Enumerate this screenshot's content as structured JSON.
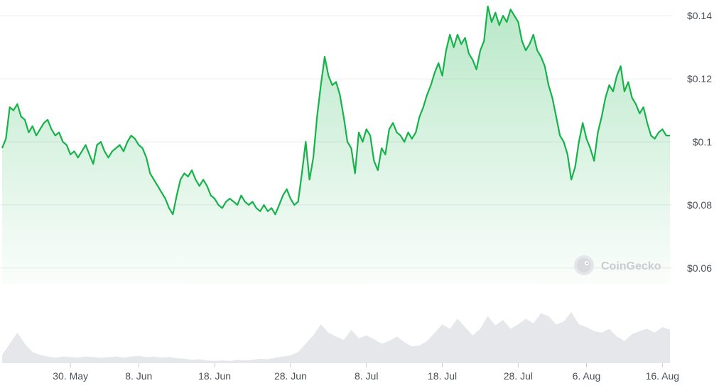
{
  "chart_data": {
    "type": "area",
    "title": "",
    "xlabel": "",
    "ylabel": "",
    "y_unit_prefix": "$",
    "ylim": [
      0.055,
      0.145
    ],
    "y_ticks": [
      "$0.14",
      "$0.12",
      "$0.1",
      "$0.08",
      "$0.06"
    ],
    "y_tick_values": [
      0.14,
      0.12,
      0.1,
      0.08,
      0.06
    ],
    "x_ticks": [
      "30. May",
      "8. Jun",
      "18. Jun",
      "28. Jun",
      "8. Jul",
      "18. Jul",
      "28. Jul",
      "6. Aug",
      "16. Aug"
    ],
    "x_tick_days": [
      9,
      18,
      28,
      38,
      48,
      58,
      68,
      77,
      87
    ],
    "x_range_days": [
      0,
      88
    ],
    "grid": "horizontal",
    "line_color": "#16b24a",
    "fill_color": "#16b24a",
    "volume_color": "#e5e7ea",
    "price_series": [
      [
        0.0,
        0.098
      ],
      [
        0.5,
        0.101
      ],
      [
        1.0,
        0.111
      ],
      [
        1.5,
        0.11
      ],
      [
        2.0,
        0.112
      ],
      [
        2.5,
        0.108
      ],
      [
        3.0,
        0.107
      ],
      [
        3.5,
        0.103
      ],
      [
        4.0,
        0.105
      ],
      [
        4.5,
        0.102
      ],
      [
        5.0,
        0.104
      ],
      [
        5.5,
        0.106
      ],
      [
        6.0,
        0.107
      ],
      [
        6.5,
        0.104
      ],
      [
        7.0,
        0.102
      ],
      [
        7.5,
        0.103
      ],
      [
        8.0,
        0.1
      ],
      [
        8.5,
        0.099
      ],
      [
        9.0,
        0.096
      ],
      [
        9.5,
        0.097
      ],
      [
        10.0,
        0.095
      ],
      [
        10.5,
        0.097
      ],
      [
        11.0,
        0.099
      ],
      [
        11.5,
        0.096
      ],
      [
        12.0,
        0.093
      ],
      [
        12.5,
        0.099
      ],
      [
        13.0,
        0.1
      ],
      [
        13.5,
        0.097
      ],
      [
        14.0,
        0.095
      ],
      [
        14.5,
        0.097
      ],
      [
        15.0,
        0.098
      ],
      [
        15.5,
        0.099
      ],
      [
        16.0,
        0.097
      ],
      [
        16.5,
        0.1
      ],
      [
        17.0,
        0.102
      ],
      [
        17.5,
        0.101
      ],
      [
        18.0,
        0.099
      ],
      [
        18.5,
        0.098
      ],
      [
        19.0,
        0.095
      ],
      [
        19.5,
        0.09
      ],
      [
        20.0,
        0.088
      ],
      [
        20.5,
        0.086
      ],
      [
        21.0,
        0.084
      ],
      [
        21.5,
        0.082
      ],
      [
        22.0,
        0.079
      ],
      [
        22.5,
        0.077
      ],
      [
        23.0,
        0.083
      ],
      [
        23.5,
        0.088
      ],
      [
        24.0,
        0.09
      ],
      [
        24.5,
        0.089
      ],
      [
        25.0,
        0.091
      ],
      [
        25.5,
        0.088
      ],
      [
        26.0,
        0.086
      ],
      [
        26.5,
        0.088
      ],
      [
        27.0,
        0.086
      ],
      [
        27.5,
        0.083
      ],
      [
        28.0,
        0.082
      ],
      [
        28.5,
        0.08
      ],
      [
        29.0,
        0.079
      ],
      [
        29.5,
        0.081
      ],
      [
        30.0,
        0.082
      ],
      [
        30.5,
        0.081
      ],
      [
        31.0,
        0.08
      ],
      [
        31.5,
        0.083
      ],
      [
        32.0,
        0.081
      ],
      [
        32.5,
        0.08
      ],
      [
        33.0,
        0.081
      ],
      [
        33.5,
        0.079
      ],
      [
        34.0,
        0.078
      ],
      [
        34.5,
        0.08
      ],
      [
        35.0,
        0.078
      ],
      [
        35.5,
        0.079
      ],
      [
        36.0,
        0.077
      ],
      [
        36.5,
        0.08
      ],
      [
        37.0,
        0.083
      ],
      [
        37.5,
        0.085
      ],
      [
        38.0,
        0.082
      ],
      [
        38.5,
        0.08
      ],
      [
        39.0,
        0.081
      ],
      [
        39.5,
        0.09
      ],
      [
        40.0,
        0.1
      ],
      [
        40.5,
        0.088
      ],
      [
        41.0,
        0.095
      ],
      [
        41.5,
        0.108
      ],
      [
        42.0,
        0.118
      ],
      [
        42.5,
        0.127
      ],
      [
        43.0,
        0.121
      ],
      [
        43.5,
        0.118
      ],
      [
        44.0,
        0.119
      ],
      [
        44.5,
        0.115
      ],
      [
        45.0,
        0.108
      ],
      [
        45.5,
        0.1
      ],
      [
        46.0,
        0.098
      ],
      [
        46.5,
        0.09
      ],
      [
        47.0,
        0.103
      ],
      [
        47.5,
        0.1
      ],
      [
        48.0,
        0.104
      ],
      [
        48.5,
        0.102
      ],
      [
        49.0,
        0.094
      ],
      [
        49.5,
        0.091
      ],
      [
        50.0,
        0.098
      ],
      [
        50.5,
        0.096
      ],
      [
        51.0,
        0.104
      ],
      [
        51.5,
        0.106
      ],
      [
        52.0,
        0.103
      ],
      [
        52.5,
        0.102
      ],
      [
        53.0,
        0.1
      ],
      [
        53.5,
        0.103
      ],
      [
        54.0,
        0.101
      ],
      [
        54.5,
        0.103
      ],
      [
        55.0,
        0.108
      ],
      [
        55.5,
        0.111
      ],
      [
        56.0,
        0.115
      ],
      [
        56.5,
        0.118
      ],
      [
        57.0,
        0.122
      ],
      [
        57.5,
        0.125
      ],
      [
        58.0,
        0.121
      ],
      [
        58.5,
        0.129
      ],
      [
        59.0,
        0.134
      ],
      [
        59.5,
        0.13
      ],
      [
        60.0,
        0.134
      ],
      [
        60.5,
        0.131
      ],
      [
        61.0,
        0.133
      ],
      [
        61.5,
        0.128
      ],
      [
        62.0,
        0.126
      ],
      [
        62.5,
        0.123
      ],
      [
        63.0,
        0.129
      ],
      [
        63.5,
        0.132
      ],
      [
        64.0,
        0.143
      ],
      [
        64.5,
        0.138
      ],
      [
        65.0,
        0.141
      ],
      [
        65.5,
        0.137
      ],
      [
        66.0,
        0.14
      ],
      [
        66.5,
        0.138
      ],
      [
        67.0,
        0.142
      ],
      [
        67.5,
        0.14
      ],
      [
        68.0,
        0.138
      ],
      [
        68.5,
        0.132
      ],
      [
        69.0,
        0.129
      ],
      [
        69.5,
        0.131
      ],
      [
        70.0,
        0.134
      ],
      [
        70.5,
        0.129
      ],
      [
        71.0,
        0.127
      ],
      [
        71.5,
        0.124
      ],
      [
        72.0,
        0.118
      ],
      [
        72.5,
        0.114
      ],
      [
        73.0,
        0.108
      ],
      [
        73.5,
        0.102
      ],
      [
        74.0,
        0.1
      ],
      [
        74.5,
        0.096
      ],
      [
        75.0,
        0.088
      ],
      [
        75.5,
        0.092
      ],
      [
        76.0,
        0.1
      ],
      [
        76.5,
        0.106
      ],
      [
        77.0,
        0.101
      ],
      [
        77.5,
        0.098
      ],
      [
        78.0,
        0.094
      ],
      [
        78.5,
        0.103
      ],
      [
        79.0,
        0.108
      ],
      [
        79.5,
        0.114
      ],
      [
        80.0,
        0.118
      ],
      [
        80.5,
        0.116
      ],
      [
        81.0,
        0.121
      ],
      [
        81.5,
        0.124
      ],
      [
        82.0,
        0.116
      ],
      [
        82.5,
        0.119
      ],
      [
        83.0,
        0.114
      ],
      [
        83.5,
        0.112
      ],
      [
        84.0,
        0.109
      ],
      [
        84.5,
        0.111
      ],
      [
        85.0,
        0.106
      ],
      [
        85.5,
        0.102
      ],
      [
        86.0,
        0.101
      ],
      [
        86.5,
        0.103
      ],
      [
        87.0,
        0.104
      ],
      [
        87.5,
        0.102
      ],
      [
        88.0,
        0.102
      ]
    ],
    "volume_series": [
      [
        0,
        0.15
      ],
      [
        1,
        0.35
      ],
      [
        2,
        0.55
      ],
      [
        3,
        0.35
      ],
      [
        4,
        0.2
      ],
      [
        5,
        0.15
      ],
      [
        6,
        0.12
      ],
      [
        7,
        0.1
      ],
      [
        8,
        0.12
      ],
      [
        9,
        0.11
      ],
      [
        10,
        0.1
      ],
      [
        11,
        0.12
      ],
      [
        12,
        0.11
      ],
      [
        13,
        0.1
      ],
      [
        14,
        0.11
      ],
      [
        15,
        0.12
      ],
      [
        16,
        0.1
      ],
      [
        17,
        0.12
      ],
      [
        18,
        0.13
      ],
      [
        19,
        0.11
      ],
      [
        20,
        0.12
      ],
      [
        21,
        0.1
      ],
      [
        22,
        0.11
      ],
      [
        23,
        0.09
      ],
      [
        24,
        0.08
      ],
      [
        25,
        0.06
      ],
      [
        26,
        0.07
      ],
      [
        27,
        0.05
      ],
      [
        28,
        0.04
      ],
      [
        29,
        0.05
      ],
      [
        30,
        0.04
      ],
      [
        31,
        0.06
      ],
      [
        32,
        0.05
      ],
      [
        33,
        0.06
      ],
      [
        34,
        0.08
      ],
      [
        35,
        0.07
      ],
      [
        36,
        0.1
      ],
      [
        37,
        0.12
      ],
      [
        38,
        0.14
      ],
      [
        39,
        0.2
      ],
      [
        40,
        0.35
      ],
      [
        41,
        0.5
      ],
      [
        42,
        0.7
      ],
      [
        43,
        0.55
      ],
      [
        44,
        0.48
      ],
      [
        45,
        0.42
      ],
      [
        46,
        0.6
      ],
      [
        47,
        0.45
      ],
      [
        48,
        0.5
      ],
      [
        49,
        0.43
      ],
      [
        50,
        0.35
      ],
      [
        51,
        0.4
      ],
      [
        52,
        0.48
      ],
      [
        53,
        0.38
      ],
      [
        54,
        0.3
      ],
      [
        55,
        0.32
      ],
      [
        56,
        0.4
      ],
      [
        57,
        0.55
      ],
      [
        58,
        0.7
      ],
      [
        59,
        0.62
      ],
      [
        60,
        0.8
      ],
      [
        61,
        0.65
      ],
      [
        62,
        0.5
      ],
      [
        63,
        0.62
      ],
      [
        64,
        0.85
      ],
      [
        65,
        0.68
      ],
      [
        66,
        0.78
      ],
      [
        67,
        0.62
      ],
      [
        68,
        0.7
      ],
      [
        69,
        0.8
      ],
      [
        70,
        0.72
      ],
      [
        71,
        0.9
      ],
      [
        72,
        0.85
      ],
      [
        73,
        0.7
      ],
      [
        74,
        0.75
      ],
      [
        75,
        0.92
      ],
      [
        76,
        0.7
      ],
      [
        77,
        0.65
      ],
      [
        78,
        0.58
      ],
      [
        79,
        0.55
      ],
      [
        80,
        0.62
      ],
      [
        81,
        0.48
      ],
      [
        82,
        0.4
      ],
      [
        83,
        0.52
      ],
      [
        84,
        0.58
      ],
      [
        85,
        0.62
      ],
      [
        86,
        0.55
      ],
      [
        87,
        0.65
      ],
      [
        88,
        0.6
      ]
    ]
  },
  "watermark": {
    "text": "CoinGecko",
    "icon": "gecko-logo-icon"
  }
}
